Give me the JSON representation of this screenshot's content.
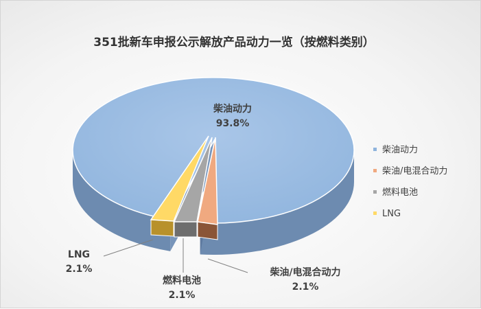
{
  "chart_data": {
    "type": "pie",
    "style": "3d-exploded",
    "title": "351批新车申报公示解放产品动力一览（按燃料类别）",
    "categories": [
      "柴油动力",
      "柴油/电混合动力",
      "燃料电池",
      "LNG"
    ],
    "values": [
      93.8,
      2.1,
      2.1,
      2.1
    ],
    "value_labels": [
      "93.8%",
      "2.1%",
      "2.1%",
      "2.1%"
    ],
    "colors": [
      "#8fb4dd",
      "#f0a980",
      "#a6a6a6",
      "#ffd966"
    ],
    "side_colors": [
      "#6d8bb0",
      "#8a5537",
      "#6e6e6e",
      "#b8912b"
    ],
    "legend": {
      "position": "right",
      "items": [
        "柴油动力",
        "柴油/电混合动力",
        "燃料电池",
        "LNG"
      ]
    }
  }
}
